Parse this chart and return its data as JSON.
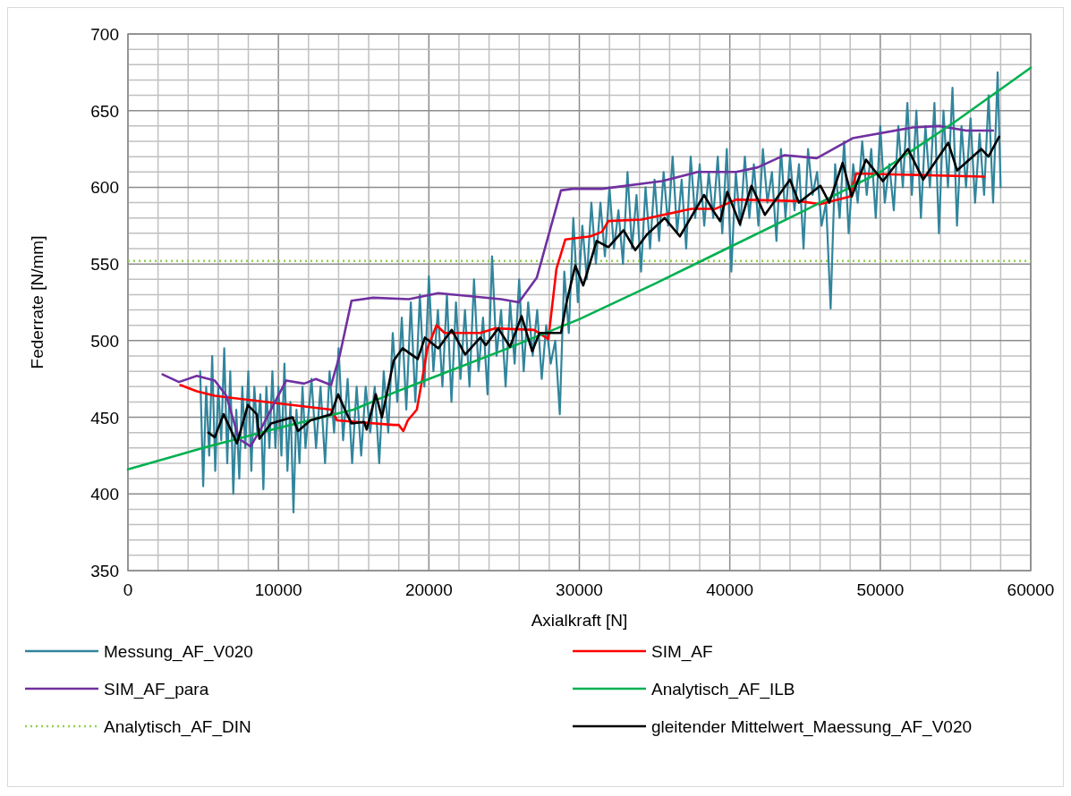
{
  "chart_data": {
    "type": "line",
    "xlabel": "Axialkraft [N]",
    "ylabel": "Federrate [N/mm]",
    "xlim": [
      0,
      60000
    ],
    "ylim": [
      350,
      700
    ],
    "xticks": [
      0,
      {
        "value": 2000,
        "label": null
      },
      {
        "value": 4000,
        "label": null
      },
      {
        "value": 6000,
        "label": null
      },
      {
        "value": 8000,
        "label": null
      },
      10000,
      {
        "value": 12000,
        "label": null
      },
      {
        "value": 14000,
        "label": null
      },
      {
        "value": 16000,
        "label": null
      },
      {
        "value": 18000,
        "label": null
      },
      20000,
      {
        "value": 22000,
        "label": null
      },
      {
        "value": 24000,
        "label": null
      },
      {
        "value": 26000,
        "label": null
      },
      {
        "value": 28000,
        "label": null
      },
      30000,
      {
        "value": 32000,
        "label": null
      },
      {
        "value": 34000,
        "label": null
      },
      {
        "value": 36000,
        "label": null
      },
      {
        "value": 38000,
        "label": null
      },
      40000,
      {
        "value": 42000,
        "label": null
      },
      {
        "value": 44000,
        "label": null
      },
      {
        "value": 46000,
        "label": null
      },
      {
        "value": 48000,
        "label": null
      },
      50000,
      {
        "value": 52000,
        "label": null
      },
      {
        "value": 54000,
        "label": null
      },
      {
        "value": 56000,
        "label": null
      },
      {
        "value": 58000,
        "label": null
      },
      60000
    ],
    "yticks": [
      350,
      {
        "value": 360,
        "label": null
      },
      {
        "value": 370,
        "label": null
      },
      {
        "value": 380,
        "label": null
      },
      {
        "value": 390,
        "label": null
      },
      400,
      {
        "value": 410,
        "label": null
      },
      {
        "value": 420,
        "label": null
      },
      {
        "value": 430,
        "label": null
      },
      {
        "value": 440,
        "label": null
      },
      450,
      {
        "value": 460,
        "label": null
      },
      {
        "value": 470,
        "label": null
      },
      {
        "value": 480,
        "label": null
      },
      {
        "value": 490,
        "label": null
      },
      500,
      {
        "value": 510,
        "label": null
      },
      {
        "value": 520,
        "label": null
      },
      {
        "value": 530,
        "label": null
      },
      {
        "value": 540,
        "label": null
      },
      550,
      {
        "value": 560,
        "label": null
      },
      {
        "value": 570,
        "label": null
      },
      {
        "value": 580,
        "label": null
      },
      {
        "value": 590,
        "label": null
      },
      600,
      {
        "value": 610,
        "label": null
      },
      {
        "value": 620,
        "label": null
      },
      {
        "value": 630,
        "label": null
      },
      {
        "value": 640,
        "label": null
      },
      650,
      {
        "value": 660,
        "label": null
      },
      {
        "value": 670,
        "label": null
      },
      {
        "value": 680,
        "label": null
      },
      {
        "value": 690,
        "label": null
      },
      700
    ],
    "grid": true,
    "legend": "bottom",
    "marker": "none",
    "line_style": "solid",
    "ref_lines": [
      {
        "axis": "y",
        "value": 552,
        "label": "Analytisch_AF_DIN",
        "color": "#92d050",
        "line_style": "dotted"
      }
    ],
    "series": [
      {
        "name": "Messung_AF_V020",
        "color": "#31859c",
        "x": [
          4800,
          5000,
          5200,
          5400,
          5600,
          5800,
          6000,
          6200,
          6400,
          6600,
          6800,
          7000,
          7200,
          7400,
          7600,
          7800,
          8000,
          8200,
          8400,
          8600,
          8800,
          9000,
          9200,
          9400,
          9600,
          9800,
          10000,
          10200,
          10400,
          10600,
          10800,
          11000,
          11200,
          11400,
          11600,
          11800,
          12200,
          12500,
          12800,
          13100,
          13400,
          13700,
          14000,
          14300,
          14600,
          14900,
          15200,
          15500,
          15800,
          16100,
          16400,
          16700,
          17000,
          17300,
          17600,
          17900,
          18200,
          18500,
          18800,
          19100,
          19400,
          19700,
          20000,
          20300,
          20600,
          20900,
          21200,
          21500,
          21800,
          22100,
          22400,
          22700,
          23000,
          23300,
          23600,
          23900,
          24200,
          24500,
          24800,
          25100,
          25400,
          25700,
          26000,
          26300,
          26600,
          26900,
          27200,
          27500,
          27800,
          28100,
          28400,
          28700,
          29000,
          29300,
          29600,
          29900,
          30200,
          30500,
          30800,
          31100,
          31400,
          31700,
          32000,
          32300,
          32600,
          32900,
          33200,
          33500,
          33800,
          34100,
          34400,
          34700,
          35000,
          35300,
          35600,
          35900,
          36200,
          36500,
          36800,
          37100,
          37400,
          37700,
          38000,
          38300,
          38600,
          38900,
          39200,
          39500,
          39800,
          40100,
          40400,
          40700,
          41000,
          41300,
          41600,
          41900,
          42200,
          42500,
          42800,
          43100,
          43400,
          43700,
          44000,
          44300,
          44600,
          44900,
          45200,
          45500,
          45800,
          46100,
          46400,
          46700,
          47000,
          47300,
          47600,
          47900,
          48200,
          48500,
          48800,
          49100,
          49400,
          49700,
          50000,
          50300,
          50600,
          50900,
          51200,
          51500,
          51800,
          52100,
          52400,
          52700,
          53000,
          53300,
          53600,
          53900,
          54200,
          54500,
          54800,
          55100,
          55400,
          55700,
          56000,
          56300,
          56600,
          56900,
          57200,
          57500,
          57800,
          58000
        ],
        "values": [
          480,
          405,
          470,
          425,
          490,
          415,
          470,
          435,
          495,
          420,
          480,
          400,
          455,
          410,
          470,
          430,
          480,
          415,
          470,
          440,
          465,
          403,
          470,
          430,
          480,
          430,
          470,
          425,
          485,
          415,
          460,
          388,
          455,
          420,
          470,
          430,
          475,
          430,
          470,
          420,
          480,
          440,
          495,
          435,
          475,
          420,
          470,
          425,
          470,
          440,
          470,
          420,
          480,
          440,
          505,
          460,
          515,
          455,
          525,
          460,
          530,
          470,
          542,
          480,
          520,
          470,
          530,
          460,
          525,
          475,
          520,
          470,
          540,
          480,
          515,
          465,
          555,
          490,
          520,
          470,
          525,
          485,
          540,
          480,
          525,
          490,
          520,
          475,
          510,
          485,
          500,
          452,
          545,
          505,
          580,
          525,
          575,
          540,
          590,
          550,
          590,
          555,
          600,
          560,
          585,
          550,
          610,
          560,
          595,
          545,
          600,
          560,
          605,
          565,
          610,
          575,
          620,
          570,
          605,
          560,
          620,
          580,
          615,
          575,
          610,
          580,
          620,
          570,
          625,
          545,
          610,
          575,
          620,
          580,
          615,
          575,
          625,
          590,
          610,
          565,
          625,
          580,
          620,
          585,
          615,
          560,
          625,
          595,
          610,
          575,
          590,
          521,
          615,
          580,
          630,
          570,
          615,
          590,
          630,
          595,
          625,
          580,
          640,
          590,
          615,
          585,
          640,
          600,
          655,
          595,
          650,
          580,
          640,
          600,
          655,
          570,
          650,
          600,
          665,
          575,
          640,
          600,
          645,
          590,
          635,
          595,
          660,
          590,
          675,
          600
        ]
      },
      {
        "name": "SIM_AF",
        "color": "#ff0000",
        "x": [
          3490,
          4580,
          5770,
          13500,
          13900,
          17660,
          18000,
          18300,
          18600,
          19200,
          19560,
          19900,
          20510,
          21040,
          23420,
          24380,
          26990,
          27940,
          28480,
          29070,
          30740,
          31510,
          31930,
          34130,
          37460,
          39060,
          40430,
          44590,
          46000,
          47980,
          48400,
          56900
        ],
        "values": [
          471,
          467,
          464,
          455,
          448,
          445,
          445,
          441,
          448,
          455,
          475,
          495,
          510,
          505,
          505,
          508,
          507,
          501,
          547,
          566,
          568,
          571,
          578,
          579,
          586,
          586,
          592,
          591,
          589,
          594,
          609,
          607
        ]
      },
      {
        "name": "SIM_AF_para",
        "color": "#7030a0",
        "x": [
          2300,
          3390,
          4580,
          5770,
          6540,
          7370,
          8150,
          8920,
          10520,
          11710,
          12490,
          13500,
          14090,
          14860,
          16290,
          18670,
          20630,
          24790,
          25980,
          27170,
          28780,
          29550,
          31510,
          35490,
          37870,
          40430,
          41860,
          43640,
          45780,
          48160,
          52140,
          53920,
          55710,
          57490
        ],
        "values": [
          478,
          473,
          477,
          474,
          464,
          436,
          431,
          444,
          474,
          472,
          475,
          471,
          491,
          526,
          528,
          527,
          531,
          527,
          525,
          541,
          598,
          599,
          599,
          604,
          610,
          610,
          613,
          621,
          619,
          632,
          639,
          640,
          637,
          637
        ]
      },
      {
        "name": "Analytisch_AF_ILB",
        "color": "#00b050",
        "x": [
          0,
          5000,
          10000,
          15000,
          17660,
          20000,
          25000,
          30000,
          35000,
          40000,
          45000,
          50000,
          55000,
          60000
        ],
        "values": [
          416,
          430,
          443,
          455,
          466,
          475,
          494,
          514,
          537,
          561,
          585,
          610,
          643,
          678
        ]
      },
      {
        "name": "gleitender Mittelwert_Maessung_AF_V020",
        "color": "#000000",
        "x": [
          5350,
          5770,
          6360,
          7250,
          7970,
          8560,
          8740,
          9510,
          10940,
          11300,
          12130,
          13500,
          13970,
          14510,
          14860,
          15700,
          15870,
          16470,
          16880,
          17240,
          17660,
          18250,
          19260,
          19740,
          20630,
          21520,
          22410,
          23420,
          23780,
          24610,
          25390,
          26160,
          26870,
          27350,
          28780,
          29130,
          29730,
          30260,
          31150,
          31930,
          32940,
          33710,
          34480,
          35670,
          36680,
          38290,
          38940,
          39360,
          39830,
          40670,
          41440,
          42330,
          44000,
          44590,
          46020,
          46610,
          47500,
          48100,
          49050,
          50180,
          51840,
          52850,
          54520,
          55110,
          56720,
          57190,
          57900
        ],
        "values": [
          440,
          437,
          452,
          433,
          458,
          452,
          436,
          446,
          450,
          441,
          448,
          452,
          465,
          453,
          446,
          447,
          442,
          465,
          450,
          467,
          487,
          495,
          488,
          502,
          495,
          507,
          491,
          502,
          497,
          508,
          496,
          516,
          493,
          505,
          505,
          524,
          549,
          536,
          565,
          561,
          572,
          559,
          569,
          580,
          568,
          595,
          584,
          578,
          597,
          576,
          601,
          582,
          605,
          590,
          601,
          590,
          616,
          594,
          618,
          604,
          625,
          605,
          629,
          611,
          625,
          620,
          633
        ]
      }
    ]
  }
}
